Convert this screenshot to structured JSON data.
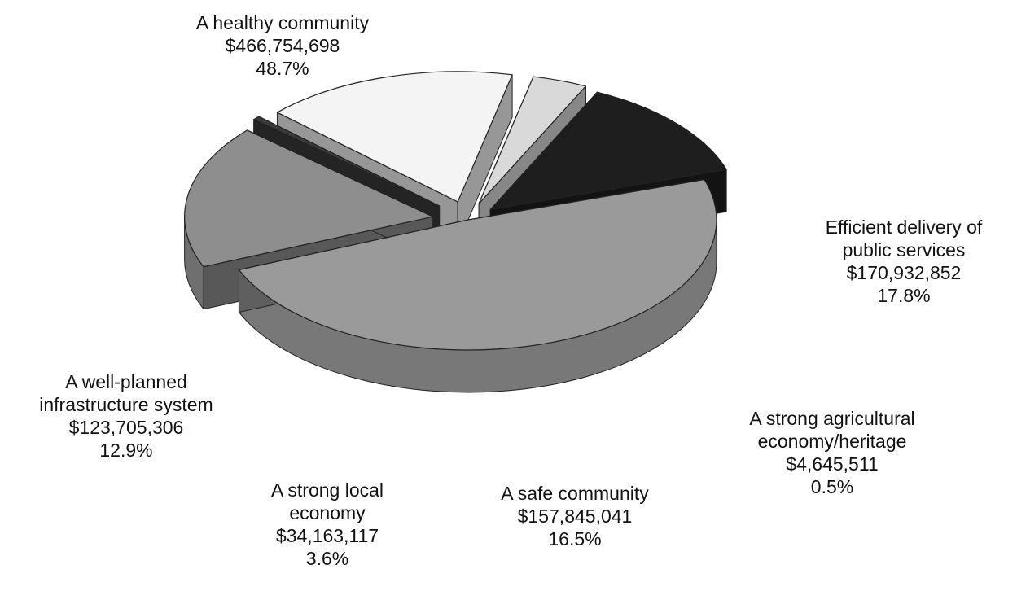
{
  "chart_data": {
    "type": "pie",
    "style": "3d-exploded",
    "title": "",
    "slices": [
      {
        "name": "A healthy community",
        "value": 466754698,
        "value_label": "$466,754,698",
        "percent_label": "48.7%",
        "color": "#9a9a9a"
      },
      {
        "name": "Efficient delivery of public services",
        "value": 170932852,
        "value_label": "$170,932,852",
        "percent_label": "17.8%",
        "color": "#8e8e8e"
      },
      {
        "name": "A strong agricultural economy/heritage",
        "value": 4645511,
        "value_label": "$4,645,511",
        "percent_label": "0.5%",
        "color": "#3a3a3a"
      },
      {
        "name": "A safe community",
        "value": 157845041,
        "value_label": "$157,845,041",
        "percent_label": "16.5%",
        "color": "#f4f4f4"
      },
      {
        "name": "A strong local economy",
        "value": 34163117,
        "value_label": "$34,163,117",
        "percent_label": "3.6%",
        "color": "#d9d9d9"
      },
      {
        "name": "A well-planned infrastructure system",
        "value": 123705306,
        "value_label": "$123,705,306",
        "percent_label": "12.9%",
        "color": "#1e1e1e"
      }
    ],
    "labels": [
      {
        "lines": [
          "A healthy community",
          "$466,754,698",
          "48.7%"
        ]
      },
      {
        "lines": [
          "Efficient delivery of",
          "public services",
          "$170,932,852",
          "17.8%"
        ]
      },
      {
        "lines": [
          "A strong agricultural",
          "economy/heritage",
          "$4,645,511",
          "0.5%"
        ]
      },
      {
        "lines": [
          "A safe community",
          "$157,845,041",
          "16.5%"
        ]
      },
      {
        "lines": [
          "A strong local",
          "economy",
          "$34,163,117",
          "3.6%"
        ]
      },
      {
        "lines": [
          "A well-planned",
          "infrastructure system",
          "$123,705,306",
          "12.9%"
        ]
      }
    ]
  }
}
